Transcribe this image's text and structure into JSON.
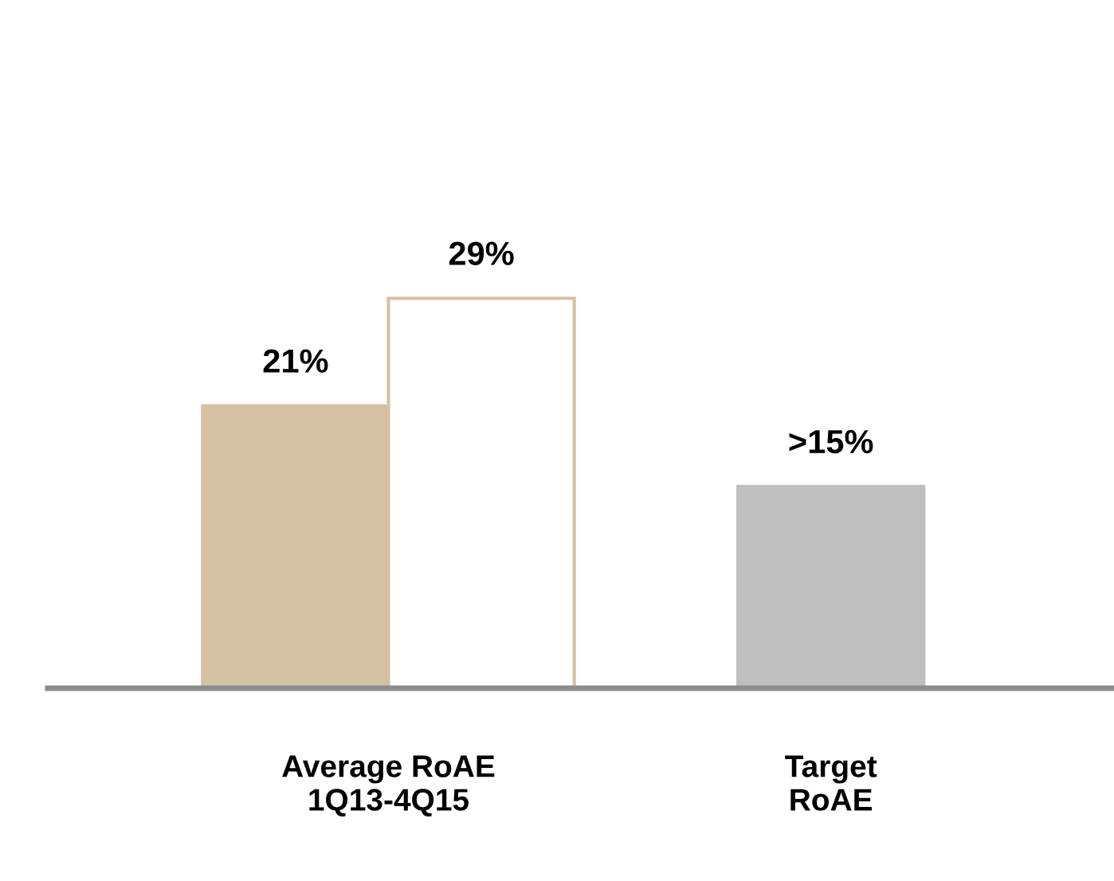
{
  "chart_data": {
    "type": "bar",
    "categories": [
      "Average RoAE\n1Q13-4Q15",
      "Target\nRoAE"
    ],
    "series": [
      {
        "color": "#d5c1a3",
        "values": [
          21,
          null
        ],
        "value_labels": [
          "21%",
          null
        ]
      },
      {
        "color": "#ffffff",
        "values": [
          29,
          null
        ],
        "value_labels": [
          "29%",
          null
        ]
      },
      {
        "color": "#bfbfbf",
        "values": [
          null,
          15
        ],
        "value_labels": [
          null,
          ">15%"
        ]
      }
    ],
    "tick_labels": "x",
    "grid": false,
    "legend": false
  }
}
